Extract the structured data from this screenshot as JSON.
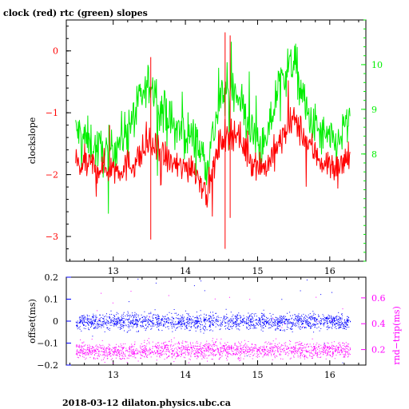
{
  "title": "clock (red) rtc (green) slopes",
  "footer": "2018-03-12 dilaton.physics.ubc.ca",
  "colors": {
    "clock": "#ff0000",
    "rtc": "#00ee00",
    "offset": "#0000ff",
    "rndtrip": "#ff00ff",
    "frame": "#000000"
  },
  "chart_data": [
    {
      "type": "line",
      "title": "clock (red) rtc (green) slopes",
      "ylabel": "clockslope",
      "xlim": [
        12.35,
        16.5
      ],
      "ylim": [
        -3.4,
        0.5
      ],
      "y2lim": [
        5.6,
        11.0
      ],
      "grid": false,
      "x_ticks": [
        "13",
        "14",
        "15",
        "16"
      ],
      "y_ticks": [
        "0",
        "−1",
        "−2",
        "−3"
      ],
      "y2_ticks": [
        "10",
        "9",
        "8"
      ],
      "series": [
        {
          "name": "clock",
          "color": "#ff0000",
          "axis": "left",
          "x": [
            12.5,
            12.7,
            12.9,
            13.1,
            13.3,
            13.5,
            13.7,
            13.9,
            14.1,
            14.3,
            14.5,
            14.7,
            14.9,
            15.1,
            15.3,
            15.5,
            15.7,
            15.9,
            16.1,
            16.3
          ],
          "y": [
            -1.85,
            -1.85,
            -1.9,
            -1.9,
            -1.8,
            -1.5,
            -1.7,
            -1.9,
            -1.85,
            -2.3,
            -1.4,
            -1.3,
            -1.75,
            -1.9,
            -1.5,
            -1.1,
            -1.5,
            -1.8,
            -1.9,
            -1.7
          ]
        },
        {
          "name": "rtc",
          "color": "#00ee00",
          "axis": "right",
          "x": [
            12.5,
            12.7,
            12.9,
            13.1,
            13.3,
            13.5,
            13.7,
            13.9,
            14.1,
            14.3,
            14.5,
            14.7,
            14.9,
            15.1,
            15.3,
            15.5,
            15.7,
            15.9,
            16.1,
            16.3
          ],
          "y": [
            8.5,
            8.2,
            8.0,
            8.3,
            8.9,
            9.6,
            8.9,
            8.5,
            8.4,
            7.8,
            9.3,
            9.5,
            8.5,
            8.1,
            9.6,
            10.1,
            8.8,
            8.4,
            8.2,
            8.9
          ]
        }
      ]
    },
    {
      "type": "scatter",
      "ylabel": "offset(ms)",
      "y2label": "rnd−trip(ms)",
      "xlim": [
        12.35,
        16.5
      ],
      "ylim": [
        -0.2,
        0.2
      ],
      "y2lim": [
        0.08,
        0.76
      ],
      "grid": false,
      "x_ticks": [
        "13",
        "14",
        "15",
        "16"
      ],
      "y_ticks": [
        "0.2",
        "0.1",
        "0",
        "−0.1",
        "−0.2"
      ],
      "y2_ticks": [
        "0.6",
        "0.4",
        "0.2"
      ],
      "series": [
        {
          "name": "offset",
          "color": "#0000ff",
          "axis": "left",
          "x": [
            12.5,
            13.0,
            13.5,
            14.0,
            14.5,
            15.0,
            15.5,
            16.0,
            16.3
          ],
          "y": [
            0.0,
            0.0,
            0.0,
            0.0,
            0.0,
            0.0,
            0.0,
            0.0,
            0.0
          ]
        },
        {
          "name": "rnd-trip",
          "color": "#ff00ff",
          "axis": "right",
          "x": [
            12.5,
            13.0,
            13.5,
            14.0,
            14.5,
            15.0,
            15.5,
            16.0,
            16.3
          ],
          "y": [
            0.2,
            0.18,
            0.2,
            0.2,
            0.2,
            0.2,
            0.2,
            0.2,
            0.21
          ]
        }
      ]
    }
  ]
}
